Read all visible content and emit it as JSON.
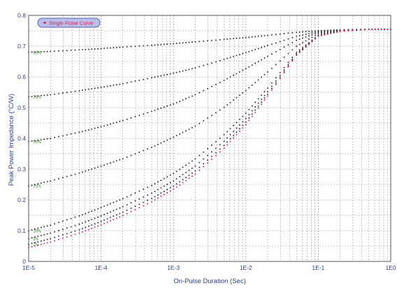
{
  "chart_data": {
    "type": "scatter",
    "xscale": "log",
    "xlim": [
      1e-05,
      1
    ],
    "ylim": [
      0,
      0.8
    ],
    "grid": true,
    "xlabel": "On-Pulse Duration (Sec)",
    "ylabel": "Peak Power Impedance (°C/W)",
    "x_ticks": [
      "1E-5",
      "1E-4",
      "1E-3",
      "1E-2",
      "1E-1",
      "1E0"
    ],
    "y_ticks": [
      "0",
      "0.1",
      "0.2",
      "0.3",
      "0.4",
      "0.5",
      "0.6",
      "0.7",
      "0.8"
    ],
    "legend": {
      "label": "Single Pulse Curve",
      "position": "top-left"
    },
    "x": [
      1e-05,
      2e-05,
      5e-05,
      0.0001,
      0.0002,
      0.0005,
      0.001,
      0.002,
      0.005,
      0.01,
      0.02,
      0.05,
      0.1,
      0.2,
      0.5,
      1
    ],
    "series": [
      {
        "name": "90%",
        "values": [
          0.68,
          0.683,
          0.688,
          0.692,
          0.697,
          0.703,
          0.708,
          0.714,
          0.722,
          0.728,
          0.735,
          0.745,
          0.75,
          0.753,
          0.755,
          0.755
        ],
        "color": "#2a2a2a"
      },
      {
        "name": "70%",
        "values": [
          0.535,
          0.542,
          0.555,
          0.566,
          0.578,
          0.597,
          0.612,
          0.629,
          0.657,
          0.679,
          0.702,
          0.732,
          0.747,
          0.752,
          0.755,
          0.755
        ],
        "color": "#2a2a2a"
      },
      {
        "name": "50%",
        "values": [
          0.39,
          0.4,
          0.42,
          0.438,
          0.458,
          0.488,
          0.512,
          0.542,
          0.589,
          0.627,
          0.667,
          0.719,
          0.744,
          0.751,
          0.755,
          0.755
        ],
        "color": "#2a2a2a"
      },
      {
        "name": "35%",
        "values": [
          0.245,
          0.262,
          0.287,
          0.31,
          0.334,
          0.371,
          0.404,
          0.44,
          0.501,
          0.556,
          0.616,
          0.7,
          0.74,
          0.75,
          0.755,
          0.755
        ],
        "color": "#2a2a2a"
      },
      {
        "name": "10%",
        "values": [
          0.1,
          0.118,
          0.148,
          0.175,
          0.204,
          0.247,
          0.286,
          0.333,
          0.412,
          0.482,
          0.564,
          0.68,
          0.735,
          0.749,
          0.755,
          0.755
        ],
        "color": "#2a2a2a"
      },
      {
        "name": "5%",
        "values": [
          0.074,
          0.092,
          0.121,
          0.148,
          0.178,
          0.222,
          0.262,
          0.31,
          0.391,
          0.465,
          0.552,
          0.675,
          0.734,
          0.749,
          0.755,
          0.755
        ],
        "color": "#2a2a2a"
      },
      {
        "name": "2%",
        "values": [
          0.056,
          0.074,
          0.103,
          0.13,
          0.16,
          0.205,
          0.245,
          0.294,
          0.377,
          0.453,
          0.544,
          0.672,
          0.733,
          0.748,
          0.755,
          0.755
        ],
        "color": "#2a2a2a"
      },
      {
        "name": "Single Pulse Curve",
        "values": [
          0.045,
          0.063,
          0.092,
          0.119,
          0.149,
          0.194,
          0.235,
          0.284,
          0.368,
          0.445,
          0.538,
          0.67,
          0.732,
          0.748,
          0.755,
          0.755
        ],
        "color": "#d81e5b"
      }
    ]
  }
}
